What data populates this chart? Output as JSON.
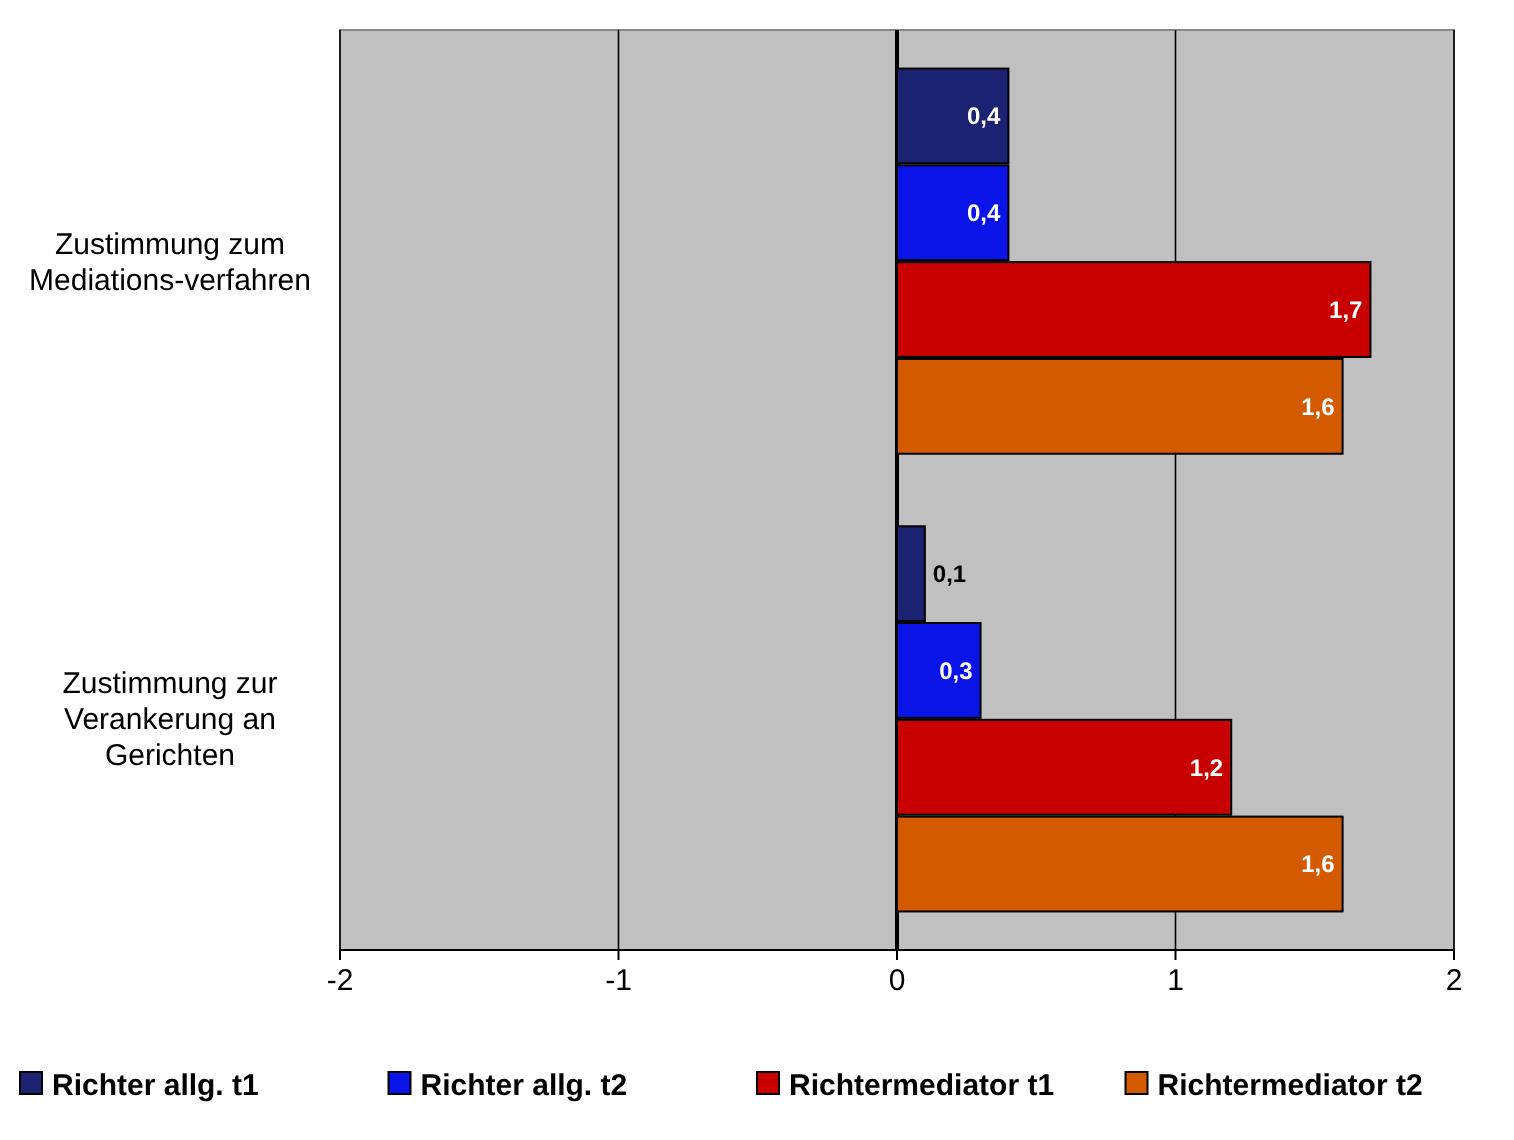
{
  "chart_data": {
    "type": "bar",
    "orientation": "horizontal",
    "categories": [
      "Zustimmung zum Mediations-verfahren",
      "Zustimmung zur Verankerung an Gerichten"
    ],
    "series": [
      {
        "name": "Richter allg. t1",
        "color": "#1c2272",
        "values": [
          0.4,
          0.1
        ],
        "value_labels": [
          "0,4",
          "0,1"
        ]
      },
      {
        "name": "Richter allg. t2",
        "color": "#0a14e6",
        "values": [
          0.4,
          0.3
        ],
        "value_labels": [
          "0,4",
          "0,3"
        ]
      },
      {
        "name": "Richtermediator t1",
        "color": "#c80000",
        "values": [
          1.7,
          1.2
        ],
        "value_labels": [
          "1,7",
          "1,2"
        ]
      },
      {
        "name": "Richtermediator t2",
        "color": "#d45a00",
        "values": [
          1.6,
          1.6
        ],
        "value_labels": [
          "1,6",
          "1,6"
        ]
      }
    ],
    "xlim": [
      -2,
      2
    ],
    "xticks": [
      -2,
      -1,
      0,
      1,
      2
    ],
    "grid": "x",
    "legend": "bottom"
  }
}
